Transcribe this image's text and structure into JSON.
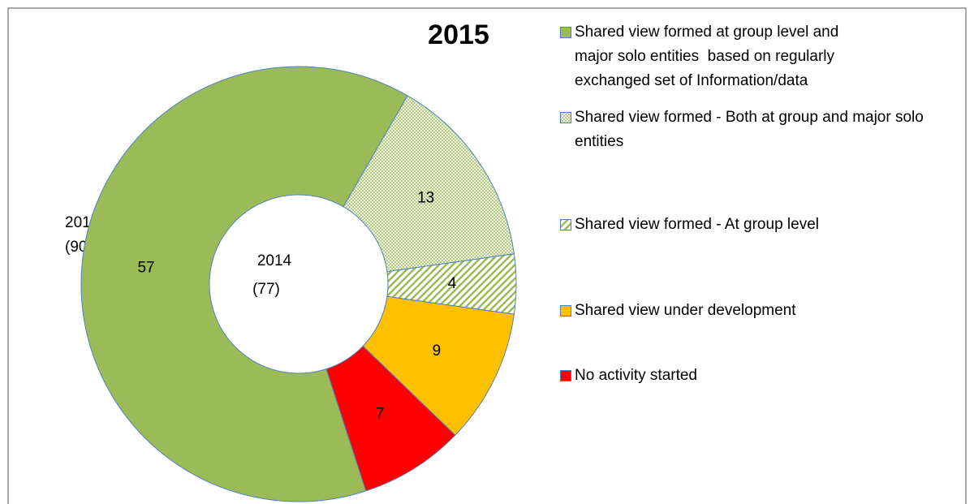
{
  "chart_data": {
    "type": "donut",
    "title": "2015",
    "center_label": [
      "2014",
      "(77)"
    ],
    "outer_label": [
      "2015",
      "(90)"
    ],
    "categories": [
      "Shared view formed at group level and major solo entities  based on regularly exchanged set of Information/data",
      "Shared view formed - Both at group and major solo entities",
      "Shared view formed - At group level",
      "Shared view under development",
      "No activity started"
    ],
    "values": [
      57,
      13,
      4,
      9,
      7
    ],
    "colors": [
      "#9bbb59",
      "#9bbb59",
      "#9bbb59",
      "#ffc000",
      "#ff0000"
    ],
    "patterns": [
      null,
      "crosshatch",
      "diagonal",
      null,
      null
    ],
    "legend": "right"
  }
}
